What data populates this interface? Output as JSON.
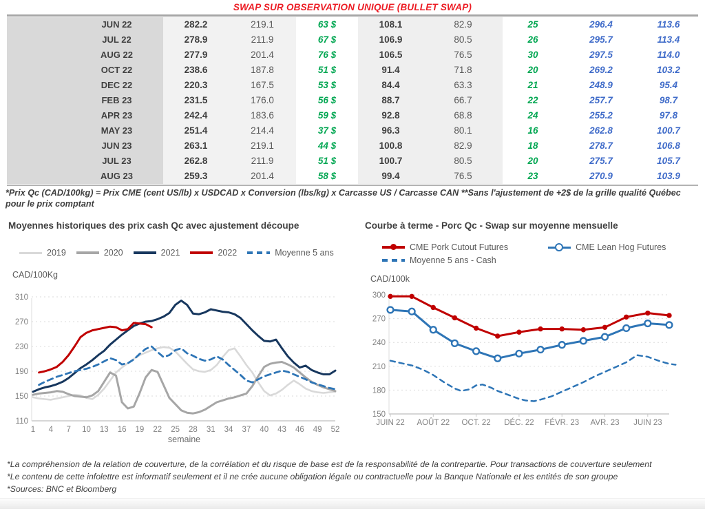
{
  "title": "SWAP SUR OBSERVATION UNIQUE (BULLET SWAP)",
  "colors": {
    "title_red": "#EC1C24",
    "green": "#00A651",
    "blue_italic": "#3F6BC9",
    "navy_2021": "#17375E",
    "red_2022": "#C00000",
    "steel_blue": "#2E75B6",
    "gray_2020": "#A6A6A6",
    "light_gray_2019": "#D9D9D9"
  },
  "table": {
    "rows": [
      [
        "JUN 22",
        "282.2",
        "219.1",
        "63 $",
        "108.1",
        "82.9",
        "25",
        "296.4",
        "113.6"
      ],
      [
        "JUL 22",
        "278.9",
        "211.9",
        "67 $",
        "106.9",
        "80.5",
        "26",
        "295.7",
        "113.4"
      ],
      [
        "AUG 22",
        "277.9",
        "201.4",
        "76 $",
        "106.5",
        "76.5",
        "30",
        "297.5",
        "114.0"
      ],
      [
        "OCT 22",
        "238.6",
        "187.8",
        "51 $",
        "91.4",
        "71.8",
        "20",
        "269.2",
        "103.2"
      ],
      [
        "DEC 22",
        "220.3",
        "167.5",
        "53 $",
        "84.4",
        "63.3",
        "21",
        "248.9",
        "95.4"
      ],
      [
        "FEB 23",
        "231.5",
        "176.0",
        "56 $",
        "88.7",
        "66.7",
        "22",
        "257.7",
        "98.7"
      ],
      [
        "APR 23",
        "242.4",
        "183.6",
        "59 $",
        "92.8",
        "68.8",
        "24",
        "255.2",
        "97.8"
      ],
      [
        "MAY 23",
        "251.4",
        "214.4",
        "37 $",
        "96.3",
        "80.1",
        "16",
        "262.8",
        "100.7"
      ],
      [
        "JUN 23",
        "263.1",
        "219.1",
        "44 $",
        "100.8",
        "82.9",
        "18",
        "278.7",
        "106.8"
      ],
      [
        "JUL 23",
        "262.8",
        "211.9",
        "51 $",
        "100.7",
        "80.5",
        "20",
        "275.7",
        "105.7"
      ],
      [
        "AUG 23",
        "259.3",
        "201.4",
        "58 $",
        "99.4",
        "76.5",
        "23",
        "270.9",
        "103.9"
      ]
    ]
  },
  "footnote_top": "*Prix Qc (CAD/100kg) = Prix CME (cent US/lb) x USDCAD x Conversion (lbs/kg) x Carcasse US / Carcasse CAN **Sans l'ajustement de +2$ de la grille qualité Québec pour le prix comptant",
  "chart_data": [
    {
      "type": "line",
      "title": "Moyennes historiques des prix cash Qc avec ajustement découpe",
      "ylabel": "CAD/100Kg",
      "xlabel": "semaine",
      "xlim": [
        1,
        52
      ],
      "ylim": [
        110,
        310
      ],
      "yticks": [
        110,
        150,
        190,
        230,
        270,
        310
      ],
      "xticks": [
        1,
        4,
        7,
        10,
        13,
        16,
        19,
        22,
        25,
        28,
        31,
        34,
        37,
        40,
        43,
        46,
        49,
        52
      ],
      "grid": "dashed-horizontal",
      "legend_position": "top",
      "legend_rows": [
        [
          {
            "label": "2019",
            "color": "#D9D9D9",
            "style": "thin"
          },
          {
            "label": "2020",
            "color": "#A6A6A6",
            "style": "solid"
          },
          {
            "label": "2021",
            "color": "#17375E",
            "style": "solid"
          },
          {
            "label": "2022",
            "color": "#C00000",
            "style": "solid"
          },
          {
            "label": "Moyenne 5 ans",
            "color": "#2E75B6",
            "style": "dashed"
          }
        ]
      ],
      "series": [
        {
          "name": "2019",
          "color": "#D9D9D9",
          "width": 2.6,
          "x_start": 1,
          "values": [
            148,
            146,
            145,
            144,
            146,
            148,
            150,
            152,
            151,
            147,
            145,
            152,
            162,
            175,
            188,
            196,
            203,
            210,
            216,
            220,
            224,
            227,
            229,
            228,
            222,
            212,
            202,
            193,
            190,
            189,
            192,
            200,
            213,
            224,
            227,
            214,
            200,
            188,
            172,
            158,
            151,
            154,
            160,
            168,
            175,
            169,
            162,
            158,
            156,
            155,
            156,
            157
          ]
        },
        {
          "name": "2020",
          "color": "#A6A6A6",
          "width": 3,
          "x_start": 1,
          "values": [
            152,
            154,
            155,
            156,
            158,
            157,
            153,
            150,
            149,
            148,
            151,
            158,
            173,
            188,
            183,
            140,
            130,
            133,
            155,
            180,
            192,
            189,
            168,
            147,
            137,
            127,
            123,
            122,
            124,
            128,
            134,
            140,
            143,
            146,
            148,
            151,
            154,
            166,
            182,
            197,
            202,
            204,
            205,
            201,
            196,
            188,
            180,
            173,
            168,
            164,
            161,
            158
          ]
        },
        {
          "name": "2021",
          "color": "#17375E",
          "width": 3,
          "x_start": 1,
          "values": [
            157,
            161,
            164,
            166,
            169,
            173,
            179,
            187,
            195,
            201,
            208,
            216,
            223,
            233,
            241,
            249,
            256,
            263,
            267,
            270,
            271,
            274,
            278,
            284,
            297,
            304,
            297,
            283,
            282,
            285,
            290,
            288,
            286,
            285,
            282,
            276,
            266,
            256,
            247,
            239,
            238,
            241,
            227,
            214,
            204,
            196,
            199,
            192,
            188,
            185,
            185,
            191
          ]
        },
        {
          "name": "2022",
          "color": "#C00000",
          "width": 3,
          "x_start": 1,
          "values": [
            null,
            188,
            190,
            193,
            197,
            205,
            216,
            230,
            245,
            252,
            256,
            258,
            260,
            262,
            261,
            256,
            258,
            268,
            267,
            266,
            261
          ]
        },
        {
          "name": "Moyenne 5 ans",
          "color": "#2E75B6",
          "width": 2.8,
          "dash": "8,6",
          "x_start": 1,
          "values": [
            null,
            168,
            173,
            177,
            181,
            184,
            187,
            190,
            192,
            194,
            197,
            201,
            206,
            211,
            208,
            201,
            203,
            209,
            218,
            226,
            230,
            221,
            213,
            216,
            224,
            227,
            219,
            215,
            210,
            207,
            209,
            214,
            209,
            200,
            192,
            184,
            175,
            172,
            177,
            182,
            185,
            188,
            191,
            189,
            185,
            181,
            177,
            172,
            169,
            166,
            163,
            161
          ]
        }
      ]
    },
    {
      "type": "line",
      "title": "Courbe à terme - Porc Qc - Swap sur moyenne mensuelle",
      "ylabel": "CAD/100k",
      "xlabel": "",
      "xlim": [
        0,
        13
      ],
      "ylim": [
        150,
        300
      ],
      "yticks": [
        150,
        180,
        210,
        240,
        270,
        300
      ],
      "xticks": [
        0,
        2,
        4,
        6,
        8,
        10,
        12
      ],
      "xtick_labels": [
        "JUIN 22",
        "AOÛT 22",
        "OCT. 22",
        "DÉC. 22",
        "FÉVR. 23",
        "AVR. 23",
        "JUIN 23"
      ],
      "xtick_marks": true,
      "grid": "dashed-horizontal",
      "legend_position": "top",
      "legend_rows": [
        [
          {
            "label": "CME Pork Cutout Futures",
            "color": "#C00000",
            "style": "dot"
          },
          {
            "label": "CME Lean Hog Futures",
            "color": "#2E75B6",
            "style": "open"
          }
        ],
        [
          {
            "label": "Moyenne 5 ans - Cash",
            "color": "#2E75B6",
            "style": "dashed"
          }
        ]
      ],
      "series": [
        {
          "name": "CME Pork Cutout Futures",
          "color": "#C00000",
          "width": 3,
          "marker": "dot",
          "x_start": 0,
          "values": [
            298,
            298,
            284,
            271,
            258,
            248,
            253,
            257,
            257,
            256,
            259,
            272,
            277,
            274
          ]
        },
        {
          "name": "CME Lean Hog Futures",
          "color": "#2E75B6",
          "width": 3,
          "marker": "open",
          "x_start": 0,
          "values": [
            281,
            279,
            256,
            239,
            229,
            220,
            226,
            231,
            237,
            242,
            247,
            258,
            264,
            262
          ]
        },
        {
          "name": "Moyenne 5 ans - Cash",
          "color": "#2E75B6",
          "width": 2.5,
          "dash": "7,6",
          "x": [
            0,
            0.5,
            1,
            1.5,
            2,
            2.5,
            3,
            3.3,
            3.7,
            4,
            4.3,
            4.7,
            5,
            5.5,
            6,
            6.3,
            6.7,
            7,
            7.5,
            8,
            8.5,
            9,
            9.5,
            10,
            10.5,
            11,
            11.5,
            12,
            12.5,
            13,
            13.3
          ],
          "values": [
            217,
            214,
            211,
            206,
            199,
            190,
            182,
            179,
            181,
            186,
            187,
            183,
            179,
            174,
            169,
            167,
            166,
            168,
            172,
            178,
            184,
            190,
            197,
            203,
            209,
            215,
            224,
            222,
            217,
            213,
            212
          ]
        }
      ]
    }
  ],
  "footnotes_bottom": [
    "*La compréhension de la relation de couverture, de la corrélation et du risque de base est de la responsabilité de la contrepartie. Pour transactions de couverture seulement",
    "*Le contenu de cette infolettre est informatif seulement et il ne crée aucune obligation légale ou contractuelle pour la Banque Nationale et les entités de son groupe",
    "*Sources: BNC et Bloomberg"
  ]
}
